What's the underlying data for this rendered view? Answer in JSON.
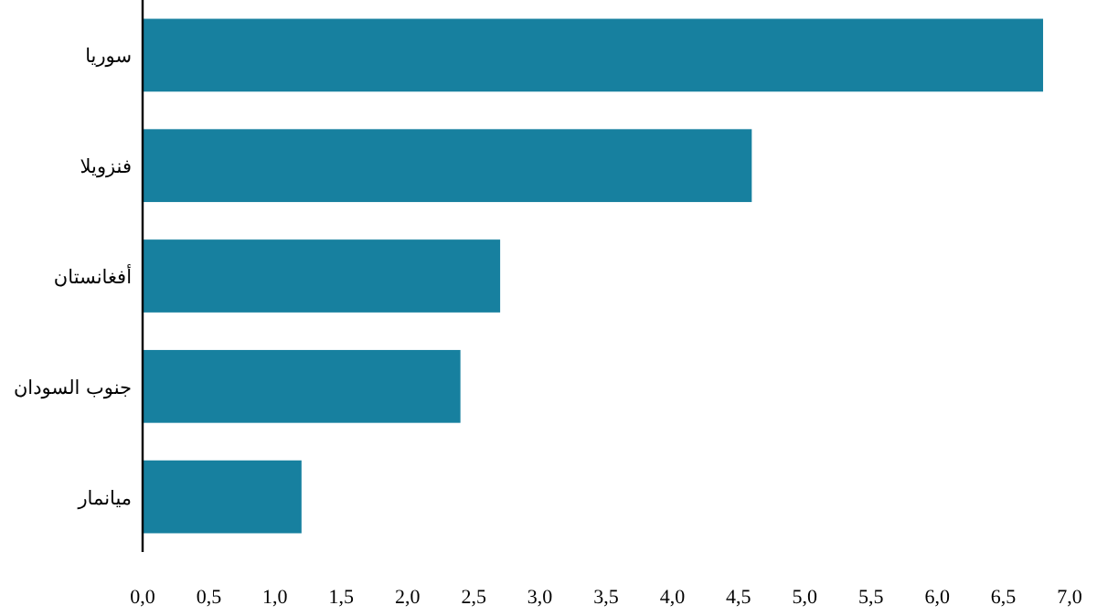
{
  "chart_data": {
    "type": "bar",
    "orientation": "horizontal",
    "categories": [
      "سوريا",
      "فنزويلا",
      "أفغانستان",
      "جنوب السودان",
      "ميانمار"
    ],
    "values": [
      6.8,
      4.6,
      2.7,
      2.4,
      1.2
    ],
    "color": "#17809f",
    "grid": false,
    "xlim": [
      0,
      7
    ],
    "xticks": [
      {
        "value": 0,
        "label": "0,0"
      },
      {
        "value": 0.5,
        "label": "0,5"
      },
      {
        "value": 1,
        "label": "1,0"
      },
      {
        "value": 1.5,
        "label": "1,5"
      },
      {
        "value": 2,
        "label": "2,0"
      },
      {
        "value": 2.5,
        "label": "2,5"
      },
      {
        "value": 3,
        "label": "3,0"
      },
      {
        "value": 3.5,
        "label": "3,5"
      },
      {
        "value": 4,
        "label": "4,0"
      },
      {
        "value": 4.5,
        "label": "4,5"
      },
      {
        "value": 5,
        "label": "5,0"
      },
      {
        "value": 5.5,
        "label": "5,5"
      },
      {
        "value": 6,
        "label": "6,0"
      },
      {
        "value": 6.5,
        "label": "6,5"
      },
      {
        "value": 7,
        "label": "7,0"
      }
    ]
  }
}
